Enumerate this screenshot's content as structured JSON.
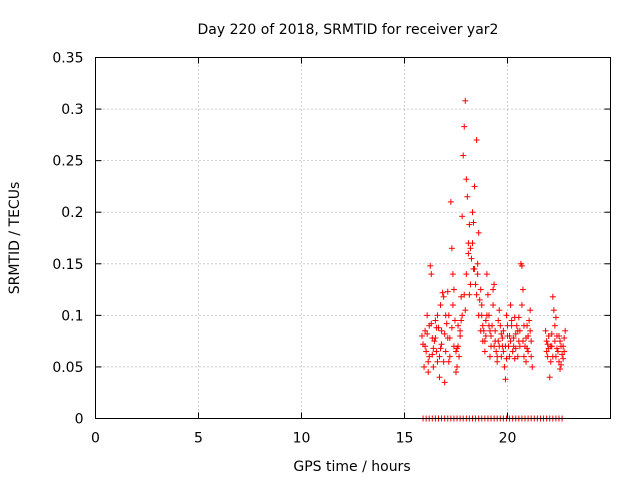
{
  "chart_data": {
    "type": "scatter",
    "title": "Day 220 of 2018, SRMTID for receiver yar2",
    "xlabel": "GPS time / hours",
    "ylabel": "SRMTID / TECUs",
    "xlim": [
      0,
      25
    ],
    "ylim": [
      0,
      0.35
    ],
    "x_ticks": [
      0,
      5,
      10,
      15,
      20
    ],
    "x_tick_labels": [
      "0",
      "5",
      "10",
      "15",
      "20"
    ],
    "y_ticks": [
      0,
      0.05,
      0.1,
      0.15,
      0.2,
      0.25,
      0.3,
      0.35
    ],
    "y_tick_labels": [
      "0",
      "0.05",
      "0.1",
      "0.15",
      "0.2",
      "0.25",
      "0.3",
      "0.35"
    ],
    "grid": true,
    "marker": "+",
    "series": [
      {
        "name": "yar2",
        "color": "#ff0000",
        "points": [
          [
            15.9,
            0.0
          ],
          [
            16.05,
            0.0
          ],
          [
            16.2,
            0.0
          ],
          [
            16.35,
            0.0
          ],
          [
            16.5,
            0.0
          ],
          [
            16.65,
            0.0
          ],
          [
            16.8,
            0.0
          ],
          [
            16.95,
            0.0
          ],
          [
            17.1,
            0.0
          ],
          [
            17.25,
            0.0
          ],
          [
            17.4,
            0.0
          ],
          [
            17.55,
            0.0
          ],
          [
            17.7,
            0.0
          ],
          [
            17.85,
            0.0
          ],
          [
            18.0,
            0.0
          ],
          [
            18.15,
            0.0
          ],
          [
            18.3,
            0.0
          ],
          [
            18.45,
            0.0
          ],
          [
            18.6,
            0.0
          ],
          [
            18.75,
            0.0
          ],
          [
            18.9,
            0.0
          ],
          [
            19.05,
            0.0
          ],
          [
            19.2,
            0.0
          ],
          [
            19.35,
            0.0
          ],
          [
            19.5,
            0.0
          ],
          [
            19.65,
            0.0
          ],
          [
            19.8,
            0.0
          ],
          [
            19.95,
            0.0
          ],
          [
            20.1,
            0.0
          ],
          [
            20.25,
            0.0
          ],
          [
            20.4,
            0.0
          ],
          [
            20.55,
            0.0
          ],
          [
            20.7,
            0.0
          ],
          [
            20.85,
            0.0
          ],
          [
            21.0,
            0.0
          ],
          [
            21.15,
            0.0
          ],
          [
            21.3,
            0.0
          ],
          [
            21.45,
            0.0
          ],
          [
            21.6,
            0.0
          ],
          [
            21.75,
            0.0
          ],
          [
            21.9,
            0.0
          ],
          [
            22.05,
            0.0
          ],
          [
            22.2,
            0.0
          ],
          [
            22.35,
            0.0
          ],
          [
            22.5,
            0.0
          ],
          [
            22.65,
            0.0
          ],
          [
            15.85,
            0.08
          ],
          [
            15.9,
            0.072
          ],
          [
            15.95,
            0.05
          ],
          [
            16.0,
            0.085
          ],
          [
            16.05,
            0.065
          ],
          [
            16.1,
            0.1
          ],
          [
            16.15,
            0.045
          ],
          [
            16.2,
            0.09
          ],
          [
            16.25,
            0.148
          ],
          [
            16.3,
            0.14
          ],
          [
            16.35,
            0.062
          ],
          [
            16.4,
            0.05
          ],
          [
            16.45,
            0.075
          ],
          [
            16.5,
            0.095
          ],
          [
            16.55,
            0.065
          ],
          [
            16.6,
            0.055
          ],
          [
            16.65,
            0.088
          ],
          [
            16.7,
            0.04
          ],
          [
            16.75,
            0.11
          ],
          [
            16.8,
            0.072
          ],
          [
            16.85,
            0.122
          ],
          [
            16.9,
            0.118
          ],
          [
            16.95,
            0.035
          ],
          [
            17.0,
            0.065
          ],
          [
            17.05,
            0.092
          ],
          [
            17.1,
            0.123
          ],
          [
            17.15,
            0.1
          ],
          [
            17.2,
            0.078
          ],
          [
            17.25,
            0.21
          ],
          [
            17.3,
            0.165
          ],
          [
            17.35,
            0.14
          ],
          [
            17.4,
            0.125
          ],
          [
            17.45,
            0.095
          ],
          [
            17.5,
            0.045
          ],
          [
            17.55,
            0.05
          ],
          [
            17.6,
            0.07
          ],
          [
            17.65,
            0.06
          ],
          [
            17.7,
            0.085
          ],
          [
            17.75,
            0.118
          ],
          [
            17.8,
            0.196
          ],
          [
            17.85,
            0.255
          ],
          [
            17.9,
            0.283
          ],
          [
            17.95,
            0.308
          ],
          [
            18.0,
            0.232
          ],
          [
            18.05,
            0.215
          ],
          [
            18.1,
            0.17
          ],
          [
            18.15,
            0.188
          ],
          [
            18.2,
            0.165
          ],
          [
            18.25,
            0.155
          ],
          [
            18.3,
            0.2
          ],
          [
            18.35,
            0.145
          ],
          [
            18.4,
            0.225
          ],
          [
            18.45,
            0.13
          ],
          [
            18.5,
            0.27
          ],
          [
            18.55,
            0.15
          ],
          [
            18.6,
            0.18
          ],
          [
            18.65,
            0.115
          ],
          [
            18.7,
            0.125
          ],
          [
            18.75,
            0.11
          ],
          [
            18.8,
            0.09
          ],
          [
            18.85,
            0.085
          ],
          [
            18.9,
            0.075
          ],
          [
            18.95,
            0.095
          ],
          [
            19.0,
            0.14
          ],
          [
            19.05,
            0.12
          ],
          [
            19.1,
            0.1
          ],
          [
            19.15,
            0.06
          ],
          [
            19.2,
            0.07
          ],
          [
            19.25,
            0.09
          ],
          [
            19.3,
            0.125
          ],
          [
            19.35,
            0.13
          ],
          [
            19.4,
            0.085
          ],
          [
            19.45,
            0.065
          ],
          [
            19.5,
            0.055
          ],
          [
            19.55,
            0.075
          ],
          [
            19.6,
            0.105
          ],
          [
            19.65,
            0.09
          ],
          [
            19.7,
            0.06
          ],
          [
            19.75,
            0.078
          ],
          [
            19.8,
            0.085
          ],
          [
            19.85,
            0.05
          ],
          [
            19.9,
            0.038
          ],
          [
            19.95,
            0.058
          ],
          [
            20.0,
            0.09
          ],
          [
            20.05,
            0.07
          ],
          [
            20.1,
            0.08
          ],
          [
            20.15,
            0.11
          ],
          [
            20.2,
            0.095
          ],
          [
            20.25,
            0.065
          ],
          [
            20.3,
            0.07
          ],
          [
            20.35,
            0.098
          ],
          [
            20.4,
            0.082
          ],
          [
            20.45,
            0.09
          ],
          [
            20.5,
            0.06
          ],
          [
            20.55,
            0.075
          ],
          [
            20.6,
            0.085
          ],
          [
            20.65,
            0.15
          ],
          [
            20.7,
            0.148
          ],
          [
            20.75,
            0.125
          ],
          [
            20.8,
            0.09
          ],
          [
            20.85,
            0.07
          ],
          [
            20.9,
            0.055
          ],
          [
            20.95,
            0.068
          ],
          [
            21.0,
            0.08
          ],
          [
            21.05,
            0.095
          ],
          [
            21.1,
            0.105
          ],
          [
            21.15,
            0.06
          ],
          [
            21.2,
            0.05
          ],
          [
            21.85,
            0.085
          ],
          [
            21.9,
            0.075
          ],
          [
            21.95,
            0.06
          ],
          [
            22.0,
            0.068
          ],
          [
            22.05,
            0.04
          ],
          [
            22.1,
            0.055
          ],
          [
            22.15,
            0.07
          ],
          [
            22.2,
            0.118
          ],
          [
            22.25,
            0.105
          ],
          [
            22.3,
            0.09
          ],
          [
            22.35,
            0.098
          ],
          [
            22.4,
            0.08
          ],
          [
            22.45,
            0.065
          ],
          [
            22.5,
            0.055
          ],
          [
            22.55,
            0.048
          ],
          [
            22.6,
            0.07
          ],
          [
            22.65,
            0.062
          ],
          [
            22.7,
            0.058
          ],
          [
            22.75,
            0.078
          ],
          [
            22.8,
            0.085
          ],
          [
            16.0,
            0.07
          ],
          [
            16.1,
            0.082
          ],
          [
            16.2,
            0.06
          ],
          [
            16.3,
            0.092
          ],
          [
            16.4,
            0.068
          ],
          [
            16.5,
            0.078
          ],
          [
            16.6,
            0.1
          ],
          [
            16.7,
            0.06
          ],
          [
            16.8,
            0.085
          ],
          [
            16.9,
            0.055
          ],
          [
            17.0,
            0.1
          ],
          [
            17.1,
            0.078
          ],
          [
            17.2,
            0.06
          ],
          [
            17.3,
            0.088
          ],
          [
            17.4,
            0.07
          ],
          [
            17.5,
            0.065
          ],
          [
            17.6,
            0.09
          ],
          [
            17.7,
            0.08
          ],
          [
            17.8,
            0.1
          ],
          [
            17.9,
            0.12
          ],
          [
            18.0,
            0.14
          ],
          [
            18.1,
            0.16
          ],
          [
            18.2,
            0.13
          ],
          [
            18.3,
            0.17
          ],
          [
            18.4,
            0.145
          ],
          [
            18.5,
            0.12
          ],
          [
            18.6,
            0.1
          ],
          [
            18.7,
            0.085
          ],
          [
            18.8,
            0.075
          ],
          [
            18.9,
            0.065
          ],
          [
            19.0,
            0.1
          ],
          [
            19.1,
            0.09
          ],
          [
            19.2,
            0.08
          ],
          [
            19.3,
            0.11
          ],
          [
            19.4,
            0.075
          ],
          [
            19.5,
            0.06
          ],
          [
            19.6,
            0.07
          ],
          [
            19.7,
            0.082
          ],
          [
            19.8,
            0.065
          ],
          [
            19.9,
            0.07
          ],
          [
            20.0,
            0.08
          ],
          [
            20.1,
            0.06
          ],
          [
            20.2,
            0.09
          ],
          [
            20.3,
            0.078
          ],
          [
            20.4,
            0.068
          ],
          [
            20.5,
            0.085
          ],
          [
            20.6,
            0.07
          ],
          [
            20.7,
            0.11
          ],
          [
            20.8,
            0.06
          ],
          [
            20.9,
            0.078
          ],
          [
            21.0,
            0.065
          ],
          [
            21.1,
            0.085
          ],
          [
            21.9,
            0.065
          ],
          [
            22.0,
            0.08
          ],
          [
            22.1,
            0.07
          ],
          [
            22.2,
            0.06
          ],
          [
            22.3,
            0.075
          ],
          [
            22.4,
            0.068
          ],
          [
            22.5,
            0.08
          ],
          [
            22.6,
            0.052
          ],
          [
            22.7,
            0.07
          ],
          [
            16.15,
            0.055
          ],
          [
            16.35,
            0.078
          ],
          [
            16.55,
            0.088
          ],
          [
            16.75,
            0.068
          ],
          [
            16.95,
            0.082
          ],
          [
            17.15,
            0.055
          ],
          [
            17.35,
            0.11
          ],
          [
            17.55,
            0.068
          ],
          [
            17.75,
            0.095
          ],
          [
            17.95,
            0.105
          ],
          [
            18.15,
            0.12
          ],
          [
            18.35,
            0.19
          ],
          [
            18.55,
            0.14
          ],
          [
            18.75,
            0.1
          ],
          [
            18.95,
            0.08
          ],
          [
            19.15,
            0.085
          ],
          [
            19.35,
            0.07
          ],
          [
            19.55,
            0.095
          ],
          [
            19.75,
            0.07
          ],
          [
            19.95,
            0.1
          ],
          [
            20.15,
            0.075
          ],
          [
            20.35,
            0.058
          ],
          [
            20.55,
            0.098
          ],
          [
            20.75,
            0.075
          ],
          [
            20.95,
            0.09
          ],
          [
            21.15,
            0.075
          ],
          [
            21.95,
            0.072
          ],
          [
            22.15,
            0.082
          ],
          [
            22.35,
            0.06
          ],
          [
            22.55,
            0.075
          ],
          [
            22.75,
            0.065
          ]
        ]
      }
    ]
  }
}
